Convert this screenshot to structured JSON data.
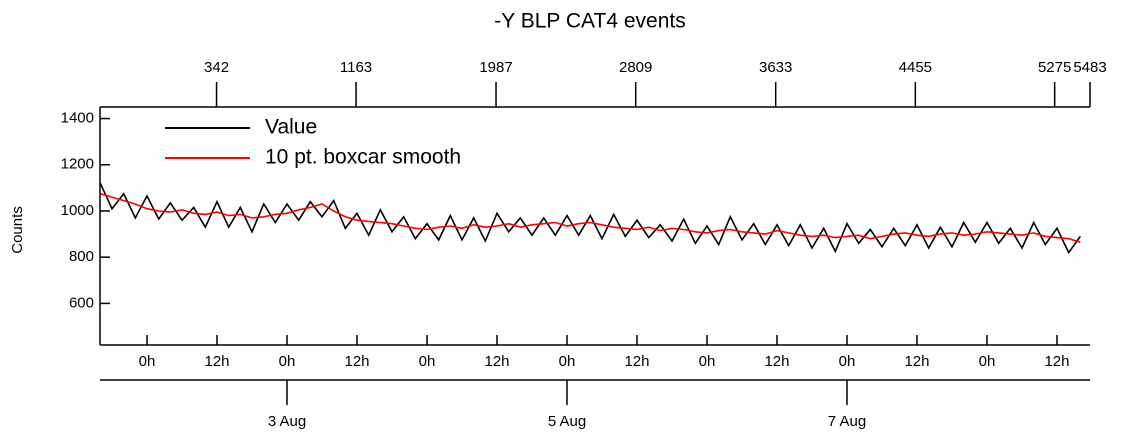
{
  "chart_data": {
    "type": "line",
    "title": "-Y BLP CAT4 events",
    "ylabel": "Counts",
    "x": [
      16,
      18,
      20,
      22,
      24,
      26,
      28,
      30,
      32,
      34,
      36,
      38,
      40,
      42,
      44,
      46,
      48,
      50,
      52,
      54,
      56,
      58,
      60,
      62,
      64,
      66,
      68,
      70,
      72,
      74,
      76,
      78,
      80,
      82,
      84,
      86,
      88,
      90,
      92,
      94,
      96,
      98,
      100,
      102,
      104,
      106,
      108,
      110,
      112,
      114,
      116,
      118,
      120,
      122,
      124,
      126,
      128,
      130,
      132,
      134,
      136,
      138,
      140,
      142,
      144,
      146,
      148,
      150,
      152,
      154,
      156,
      158,
      160,
      162,
      164,
      166,
      168,
      170,
      172,
      174,
      176,
      178,
      180,
      182,
      184
    ],
    "series": [
      {
        "name": "Value",
        "color": "#000000",
        "values": [
          1120,
          1010,
          1075,
          970,
          1065,
          965,
          1035,
          960,
          1015,
          930,
          1040,
          930,
          1015,
          910,
          1030,
          950,
          1030,
          960,
          1040,
          975,
          1045,
          925,
          990,
          895,
          1005,
          910,
          975,
          880,
          945,
          875,
          980,
          875,
          970,
          870,
          990,
          910,
          970,
          895,
          970,
          895,
          980,
          895,
          980,
          880,
          985,
          890,
          960,
          885,
          940,
          870,
          965,
          860,
          935,
          855,
          975,
          875,
          945,
          855,
          940,
          850,
          940,
          840,
          925,
          825,
          945,
          860,
          920,
          845,
          925,
          850,
          940,
          840,
          930,
          845,
          950,
          865,
          950,
          860,
          925,
          840,
          950,
          855,
          925,
          820,
          890
        ]
      },
      {
        "name": "10 pt. boxcar smooth",
        "color": "#ff0000",
        "values": [
          1075,
          1060,
          1045,
          1030,
          1010,
          1000,
          995,
          1005,
          990,
          985,
          995,
          980,
          985,
          970,
          975,
          985,
          990,
          1005,
          1015,
          1030,
          1000,
          975,
          960,
          955,
          950,
          945,
          935,
          925,
          920,
          930,
          935,
          925,
          940,
          930,
          935,
          945,
          930,
          940,
          945,
          950,
          935,
          945,
          950,
          940,
          930,
          925,
          920,
          930,
          915,
          925,
          920,
          910,
          905,
          915,
          920,
          910,
          905,
          900,
          915,
          905,
          895,
          890,
          895,
          885,
          890,
          895,
          880,
          890,
          900,
          905,
          895,
          890,
          900,
          905,
          895,
          900,
          910,
          905,
          900,
          895,
          905,
          890,
          885,
          880,
          865
        ]
      }
    ],
    "xlim": [
      15.94,
      185.66
    ],
    "xticks": [
      {
        "value": 24,
        "label": "0h"
      },
      {
        "value": 36,
        "label": "12h"
      },
      {
        "value": 48,
        "label": "0h"
      },
      {
        "value": 60,
        "label": "12h"
      },
      {
        "value": 72,
        "label": "0h"
      },
      {
        "value": 84,
        "label": "12h"
      },
      {
        "value": 96,
        "label": "0h"
      },
      {
        "value": 108,
        "label": "12h"
      },
      {
        "value": 120,
        "label": "0h"
      },
      {
        "value": 132,
        "label": "12h"
      },
      {
        "value": 144,
        "label": "0h"
      },
      {
        "value": 156,
        "label": "12h"
      },
      {
        "value": 168,
        "label": "0h"
      },
      {
        "value": 180,
        "label": "12h"
      }
    ],
    "date_ticks": [
      {
        "value": 48,
        "label": "3 Aug"
      },
      {
        "value": 96,
        "label": "5 Aug"
      },
      {
        "value": 144,
        "label": "7 Aug"
      }
    ],
    "x2lim": [
      -344,
      5483
    ],
    "x2ticks": [
      342,
      1163,
      1987,
      2809,
      3633,
      4455,
      5275,
      5483
    ],
    "ylim": [
      420,
      1450
    ],
    "yticks": [
      600,
      800,
      1000,
      1200,
      1400
    ]
  }
}
